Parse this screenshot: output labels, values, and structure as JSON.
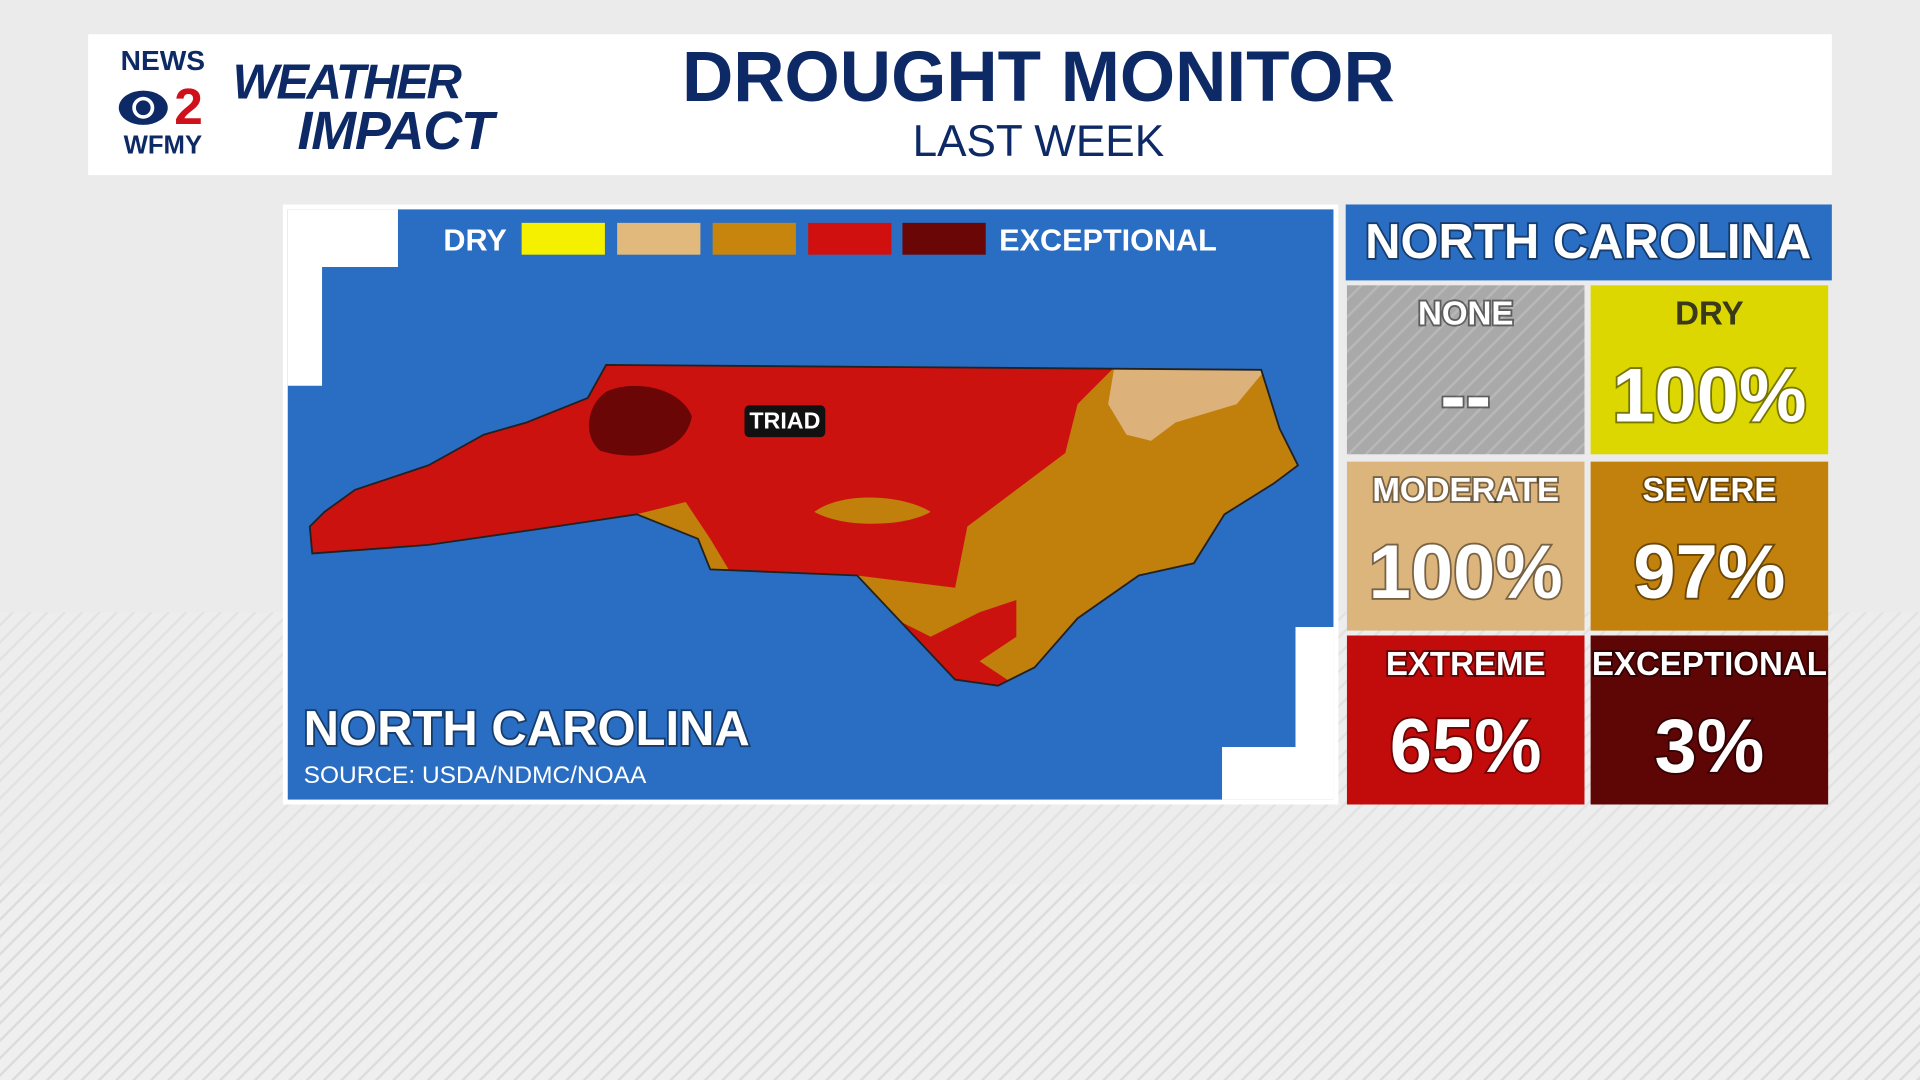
{
  "logo": {
    "news": "NEWS",
    "number": "2",
    "station": "WFMY",
    "weather": "WEATHER",
    "impact": "IMPACT"
  },
  "header": {
    "title": "DROUGHT MONITOR",
    "subtitle": "LAST WEEK"
  },
  "map": {
    "legend_low": "DRY",
    "legend_high": "EXCEPTIONAL",
    "label": "TRIAD",
    "title": "NORTH CAROLINA",
    "source": "SOURCE: USDA/NDMC/NOAA"
  },
  "panel": {
    "title": "NORTH CAROLINA",
    "cells": [
      {
        "label": "NONE",
        "value": "--"
      },
      {
        "label": "DRY",
        "value": "100%"
      },
      {
        "label": "MODERATE",
        "value": "100%"
      },
      {
        "label": "SEVERE",
        "value": "97%"
      },
      {
        "label": "EXTREME",
        "value": "65%"
      },
      {
        "label": "EXCEPTIONAL",
        "value": "3%"
      }
    ]
  }
}
